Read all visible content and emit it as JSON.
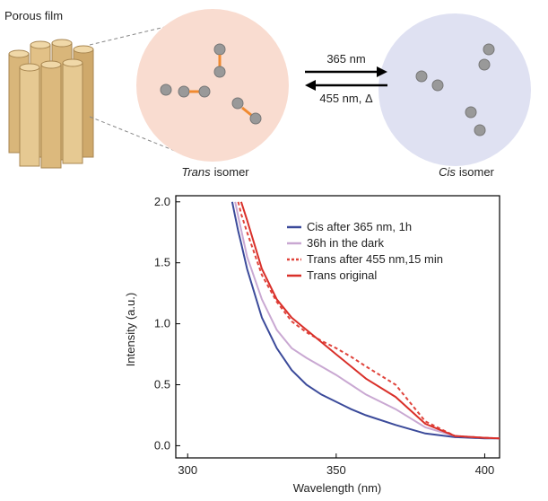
{
  "diagram": {
    "film_label": "Porous film",
    "forward_label": "365 nm",
    "reverse_label": "455 nm, Δ",
    "trans_label": {
      "italic": "Trans",
      "rest": "isomer"
    },
    "cis_label": {
      "italic": "Cis",
      "rest": "isomer"
    }
  },
  "chart_data": {
    "type": "line",
    "xlabel": "Wavelength (nm)",
    "ylabel": "Intensity (a.u.)",
    "x": [
      315,
      316,
      317,
      318,
      320,
      325,
      330,
      335,
      340,
      345,
      350,
      355,
      360,
      370,
      380,
      390,
      400,
      405
    ],
    "series": [
      {
        "name": "Cis after 365 nm, 1h",
        "color": "#3b4a9a",
        "dash": false,
        "values": [
          2.0,
          1.88,
          1.76,
          1.66,
          1.45,
          1.05,
          0.8,
          0.62,
          0.5,
          0.42,
          0.36,
          0.3,
          0.25,
          0.17,
          0.1,
          0.07,
          0.06,
          0.06
        ]
      },
      {
        "name": "36h in the dark",
        "color": "#c9a8d2",
        "dash": false,
        "values": [
          null,
          2.0,
          1.88,
          1.77,
          1.55,
          1.2,
          0.95,
          0.8,
          0.72,
          0.65,
          0.58,
          0.5,
          0.42,
          0.3,
          0.15,
          0.08,
          0.065,
          0.06
        ]
      },
      {
        "name": "Trans after 455 nm,15 min",
        "color": "#e0443c",
        "dash": true,
        "values": [
          null,
          null,
          2.0,
          1.9,
          1.75,
          1.4,
          1.18,
          1.02,
          0.93,
          0.86,
          0.8,
          0.73,
          0.65,
          0.5,
          0.2,
          0.08,
          0.065,
          0.06
        ]
      },
      {
        "name": "Trans original",
        "color": "#d9302a",
        "dash": false,
        "values": [
          null,
          null,
          null,
          2.0,
          1.85,
          1.45,
          1.2,
          1.05,
          0.95,
          0.85,
          0.75,
          0.65,
          0.55,
          0.4,
          0.18,
          0.08,
          0.065,
          0.06
        ]
      }
    ],
    "xlim": [
      296,
      405
    ],
    "xticks": [
      300,
      350,
      400
    ],
    "ylim": [
      -0.1,
      2.05
    ],
    "yticks": [
      {
        "value": 0,
        "label": "0.0"
      },
      0.5,
      {
        "value": 1,
        "label": "1.0"
      },
      1.5,
      {
        "value": 2,
        "label": "2.0"
      }
    ],
    "legend": "upper right"
  }
}
